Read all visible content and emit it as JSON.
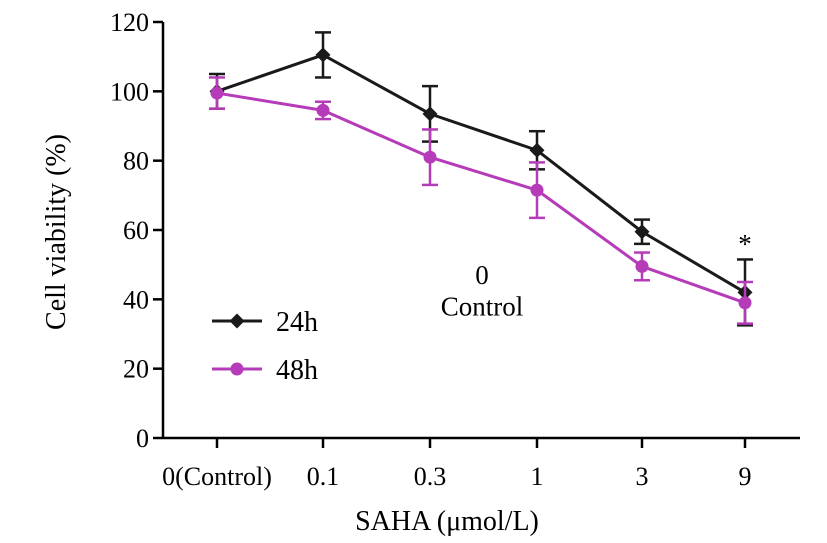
{
  "chart_data": {
    "type": "line",
    "title": "",
    "xlabel": "SAHA (μmol/L)",
    "ylabel": "Cell viability (%)",
    "categories": [
      "0(Control)",
      "0.1",
      "0.3",
      "1",
      "3",
      "9"
    ],
    "ylim": [
      0,
      120
    ],
    "yticks": [
      0,
      20,
      40,
      60,
      80,
      100,
      120
    ],
    "grid": false,
    "legend_position": "bottom-left",
    "series": [
      {
        "name": "24h",
        "color": "#1a1a1a",
        "marker": "diamond",
        "values": [
          100,
          110.5,
          93.5,
          83,
          59.5,
          42
        ],
        "errors": [
          5,
          6.5,
          8,
          5.5,
          3.5,
          9.5
        ]
      },
      {
        "name": "48h",
        "color": "#b53bb8",
        "marker": "circle",
        "values": [
          99.5,
          94.5,
          81,
          71.5,
          49.5,
          39
        ],
        "errors": [
          4.5,
          2.5,
          8,
          8,
          4,
          6
        ]
      }
    ],
    "annotations": [
      {
        "text": "*",
        "category": "9",
        "y": 56
      },
      {
        "text": "0",
        "category": "1",
        "y": 47
      },
      {
        "text": "Control",
        "category": "1",
        "y": 38
      }
    ]
  }
}
